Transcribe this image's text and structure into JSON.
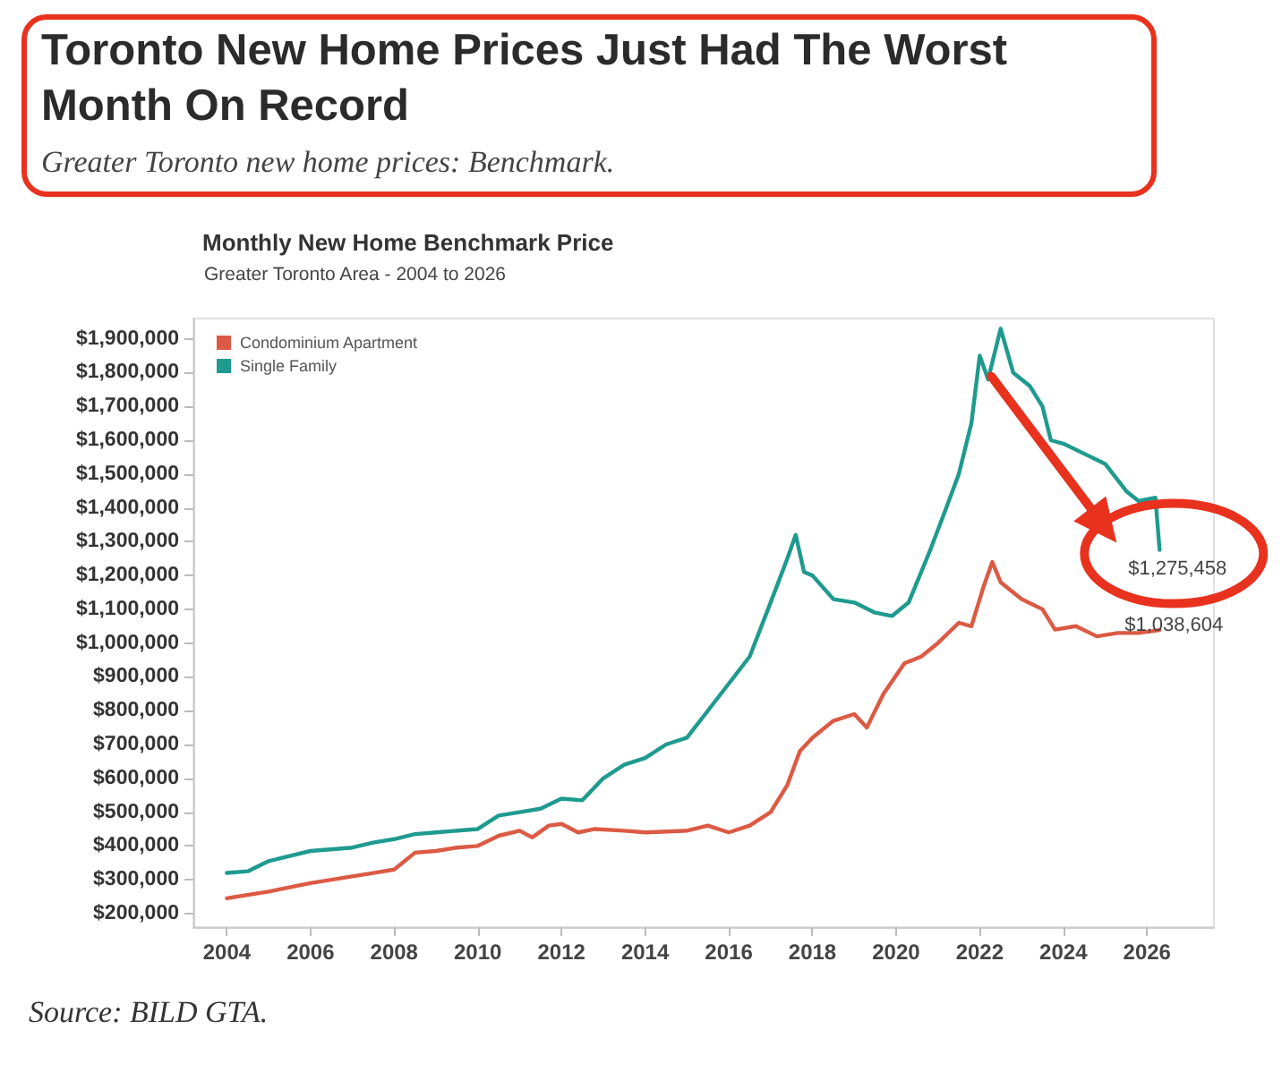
{
  "chart_data": {
    "type": "line",
    "title": "Toronto New Home Prices Just Had The Worst Month On Record",
    "subtitle": "Greater Toronto new home prices: Benchmark.",
    "annotations": [
      "Monthly New Home Benchmark Price",
      "Greater Toronto Area - 2004 to 2026",
      "Source: BILD GTA."
    ],
    "legend": "top left",
    "marker": "none",
    "line_style": "solid",
    "xlim": [
      2003.2,
      2027.6
    ],
    "xticks": [
      2004,
      2006,
      2008,
      2010,
      2012,
      2014,
      2016,
      2018,
      2020,
      2022,
      2024,
      2026
    ],
    "ylim": [
      160000,
      1960000
    ],
    "yticks": [
      {
        "value": 200000,
        "label": "$200,000"
      },
      {
        "value": 300000,
        "label": "$300,000"
      },
      {
        "value": 400000,
        "label": "$400,000"
      },
      {
        "value": 500000,
        "label": "$500,000"
      },
      {
        "value": 600000,
        "label": "$600,000"
      },
      {
        "value": 700000,
        "label": "$700,000"
      },
      {
        "value": 800000,
        "label": "$800,000"
      },
      {
        "value": 900000,
        "label": "$900,000"
      },
      {
        "value": 1000000,
        "label": "$1,000,000"
      },
      {
        "value": 1100000,
        "label": "$1,100,000"
      },
      {
        "value": 1200000,
        "label": "$1,200,000"
      },
      {
        "value": 1300000,
        "label": "$1,300,000"
      },
      {
        "value": 1400000,
        "label": "$1,400,000"
      },
      {
        "value": 1500000,
        "label": "$1,500,000"
      },
      {
        "value": 1600000,
        "label": "$1,600,000"
      },
      {
        "value": 1700000,
        "label": "$1,700,000"
      },
      {
        "value": 1800000,
        "label": "$1,800,000"
      },
      {
        "value": 1900000,
        "label": "$1,900,000"
      }
    ],
    "series": [
      {
        "name": "Condominium Apartment",
        "color": "#dc5a44",
        "x": [
          2004,
          2005,
          2006,
          2007,
          2007.5,
          2008,
          2008.5,
          2009,
          2009.5,
          2010,
          2010.5,
          2011,
          2011.3,
          2011.7,
          2012,
          2012.4,
          2012.8,
          2013.5,
          2014,
          2015,
          2015.5,
          2016,
          2016.5,
          2017,
          2017.4,
          2017.7,
          2018,
          2018.5,
          2019,
          2019.3,
          2019.7,
          2020.2,
          2020.6,
          2021,
          2021.5,
          2021.8,
          2022.1,
          2022.3,
          2022.5,
          2023,
          2023.5,
          2023.8,
          2024.3,
          2024.8,
          2025.3,
          2025.8,
          2026.3
        ],
        "values": [
          245000,
          265000,
          290000,
          310000,
          320000,
          330000,
          380000,
          385000,
          395000,
          400000,
          430000,
          445000,
          425000,
          460000,
          465000,
          440000,
          450000,
          445000,
          440000,
          445000,
          460000,
          440000,
          460000,
          500000,
          580000,
          680000,
          720000,
          770000,
          790000,
          750000,
          850000,
          940000,
          960000,
          1000000,
          1060000,
          1050000,
          1170000,
          1240000,
          1180000,
          1130000,
          1100000,
          1040000,
          1050000,
          1020000,
          1030000,
          1030000,
          1038604
        ],
        "value_labels": [
          null,
          null,
          null,
          null,
          null,
          null,
          null,
          null,
          null,
          null,
          null,
          null,
          null,
          null,
          null,
          null,
          null,
          null,
          null,
          null,
          null,
          null,
          null,
          null,
          null,
          null,
          null,
          null,
          null,
          null,
          null,
          null,
          null,
          null,
          null,
          null,
          null,
          null,
          null,
          null,
          null,
          null,
          null,
          null,
          null,
          null,
          "$1,038,604"
        ]
      },
      {
        "name": "Single Family",
        "color": "#1f9a8f",
        "x": [
          2004,
          2004.5,
          2005,
          2005.5,
          2006,
          2007,
          2007.5,
          2008,
          2008.5,
          2009,
          2010,
          2010.5,
          2011,
          2011.5,
          2012,
          2012.5,
          2013,
          2013.5,
          2014,
          2014.5,
          2015,
          2015.5,
          2016,
          2016.5,
          2017,
          2017.4,
          2017.6,
          2017.8,
          2018,
          2018.5,
          2019,
          2019.5,
          2019.9,
          2020.3,
          2020.8,
          2021.2,
          2021.5,
          2021.8,
          2022,
          2022.2,
          2022.5,
          2022.8,
          2023.2,
          2023.5,
          2023.7,
          2024,
          2024.5,
          2025,
          2025.5,
          2025.8,
          2026.2,
          2026.3
        ],
        "values": [
          320000,
          325000,
          355000,
          370000,
          385000,
          395000,
          410000,
          420000,
          435000,
          440000,
          450000,
          490000,
          500000,
          510000,
          540000,
          535000,
          600000,
          640000,
          660000,
          700000,
          720000,
          800000,
          880000,
          960000,
          1120000,
          1250000,
          1320000,
          1210000,
          1200000,
          1130000,
          1120000,
          1090000,
          1080000,
          1120000,
          1270000,
          1400000,
          1500000,
          1650000,
          1850000,
          1780000,
          1930000,
          1800000,
          1760000,
          1700000,
          1600000,
          1590000,
          1560000,
          1530000,
          1450000,
          1420000,
          1430000,
          1275458
        ],
        "value_labels": [
          null,
          null,
          null,
          null,
          null,
          null,
          null,
          null,
          null,
          null,
          null,
          null,
          null,
          null,
          null,
          null,
          null,
          null,
          null,
          null,
          null,
          null,
          null,
          null,
          null,
          null,
          null,
          null,
          null,
          null,
          null,
          null,
          null,
          null,
          null,
          null,
          null,
          null,
          null,
          null,
          null,
          null,
          null,
          null,
          null,
          null,
          null,
          null,
          null,
          null,
          null,
          "$1,275,458"
        ]
      }
    ]
  }
}
